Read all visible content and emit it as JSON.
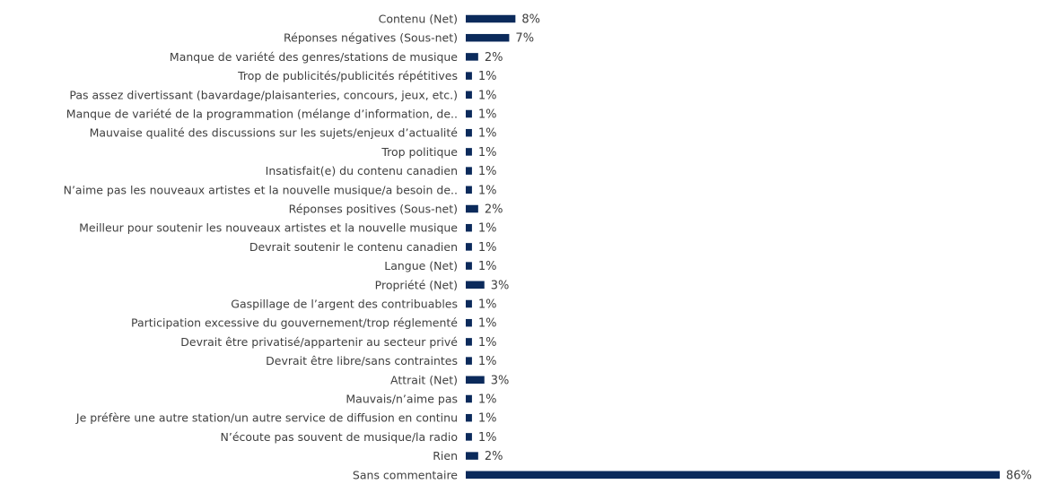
{
  "chart_data": {
    "type": "bar",
    "orientation": "horizontal",
    "bar_color": "#0b2a5b",
    "value_suffix": "%",
    "xlim": [
      0,
      86
    ],
    "grid": false,
    "categories": [
      "Contenu (Net)",
      "Réponses négatives (Sous-net)",
      "Manque de variété des genres/stations de musique",
      "Trop de publicités/publicités répétitives",
      "Pas assez divertissant (bavardage/plaisanteries, concours, jeux, etc.)",
      "Manque de variété de la programmation (mélange d’information, de..",
      "Mauvaise qualité des discussions sur les sujets/enjeux d’actualité",
      "Trop politique",
      "Insatisfait(e) du contenu canadien",
      "N’aime pas les nouveaux artistes et la nouvelle musique/a besoin de..",
      "Réponses positives (Sous-net)",
      "Meilleur pour soutenir les nouveaux artistes et la nouvelle musique",
      "Devrait soutenir le contenu canadien",
      "Langue (Net)",
      "Propriété (Net)",
      "Gaspillage de l’argent des contribuables",
      "Participation excessive du gouvernement/trop réglementé",
      "Devrait être privatisé/appartenir au secteur privé",
      "Devrait être libre/sans contraintes",
      "Attrait (Net)",
      "Mauvais/n’aime pas",
      "Je préfère une autre station/un autre service de diffusion en continu",
      "N’écoute pas souvent de musique/la radio",
      "Rien",
      "Sans commentaire"
    ],
    "values": [
      8,
      7,
      2,
      1,
      1,
      1,
      1,
      1,
      1,
      1,
      2,
      1,
      1,
      1,
      3,
      1,
      1,
      1,
      1,
      3,
      1,
      1,
      1,
      2,
      86
    ],
    "value_labels": [
      "8%",
      "7%",
      "2%",
      "1%",
      "1%",
      "1%",
      "1%",
      "1%",
      "1%",
      "1%",
      "2%",
      "1%",
      "1%",
      "1%",
      "3%",
      "1%",
      "1%",
      "1%",
      "1%",
      "3%",
      "1%",
      "1%",
      "1%",
      "2%",
      "86%"
    ]
  }
}
